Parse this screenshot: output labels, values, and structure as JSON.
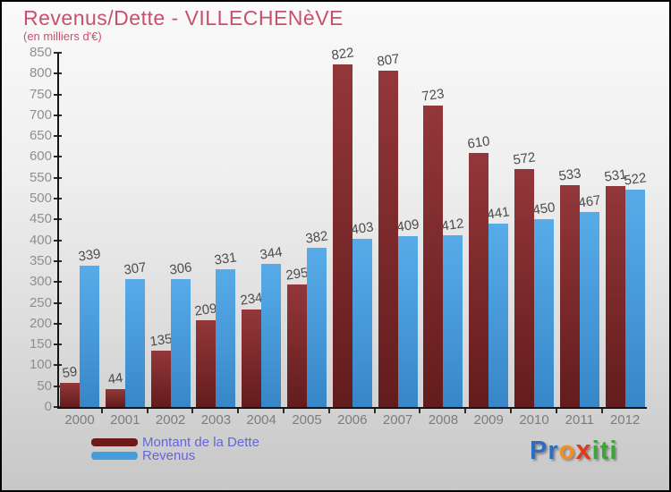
{
  "header": {
    "title": "Revenus/Dette - VILLECHENèVE",
    "subtitle": "(en milliers d'€)"
  },
  "chart_data": {
    "type": "bar",
    "title": "Revenus/Dette - VILLECHENèVE",
    "subtitle": "(en milliers d'€)",
    "categories": [
      "2000",
      "2001",
      "2002",
      "2003",
      "2004",
      "2005",
      "2006",
      "2007",
      "2008",
      "2009",
      "2010",
      "2011",
      "2012"
    ],
    "series": [
      {
        "name": "Montant de la Dette",
        "color_top": "#93373a",
        "color_bottom": "#631c1c",
        "legend_color": "#6e1a1a",
        "values": [
          59,
          44,
          135,
          209,
          234,
          295,
          822,
          807,
          723,
          610,
          572,
          533,
          531
        ]
      },
      {
        "name": "Revenus",
        "color_top": "#57ace8",
        "color_bottom": "#3787c8",
        "legend_color": "#459ddb",
        "values": [
          339,
          307,
          306,
          331,
          344,
          382,
          403,
          409,
          412,
          441,
          450,
          467,
          522
        ]
      }
    ],
    "ylim": [
      0,
      850
    ],
    "ytick_step": 50,
    "yticks": [
      0,
      50,
      100,
      150,
      200,
      250,
      300,
      350,
      400,
      450,
      500,
      550,
      600,
      650,
      700,
      750,
      800,
      850
    ],
    "grid": false,
    "value_labels_shown": true,
    "legend_position": "bottom-left"
  },
  "colors": {
    "title": "#c8506e",
    "legend_text": "#6565dd",
    "axis": "#151515",
    "ytick_label": "#8f8f8f",
    "xtick_label": "#7d7d7d",
    "value_label": "#4c4c4c",
    "background_top": "#fafafa",
    "background_bottom": "#c7c7c7",
    "border": "#000000"
  },
  "logo": {
    "text": "Proxiti",
    "parts": [
      {
        "text": "Pr",
        "color": "#2d6cc3"
      },
      {
        "text": "o",
        "color": "#f18f21"
      },
      {
        "text": "x",
        "color": "#dd3c1f"
      },
      {
        "text": "iti",
        "color": "#3da438"
      }
    ]
  }
}
